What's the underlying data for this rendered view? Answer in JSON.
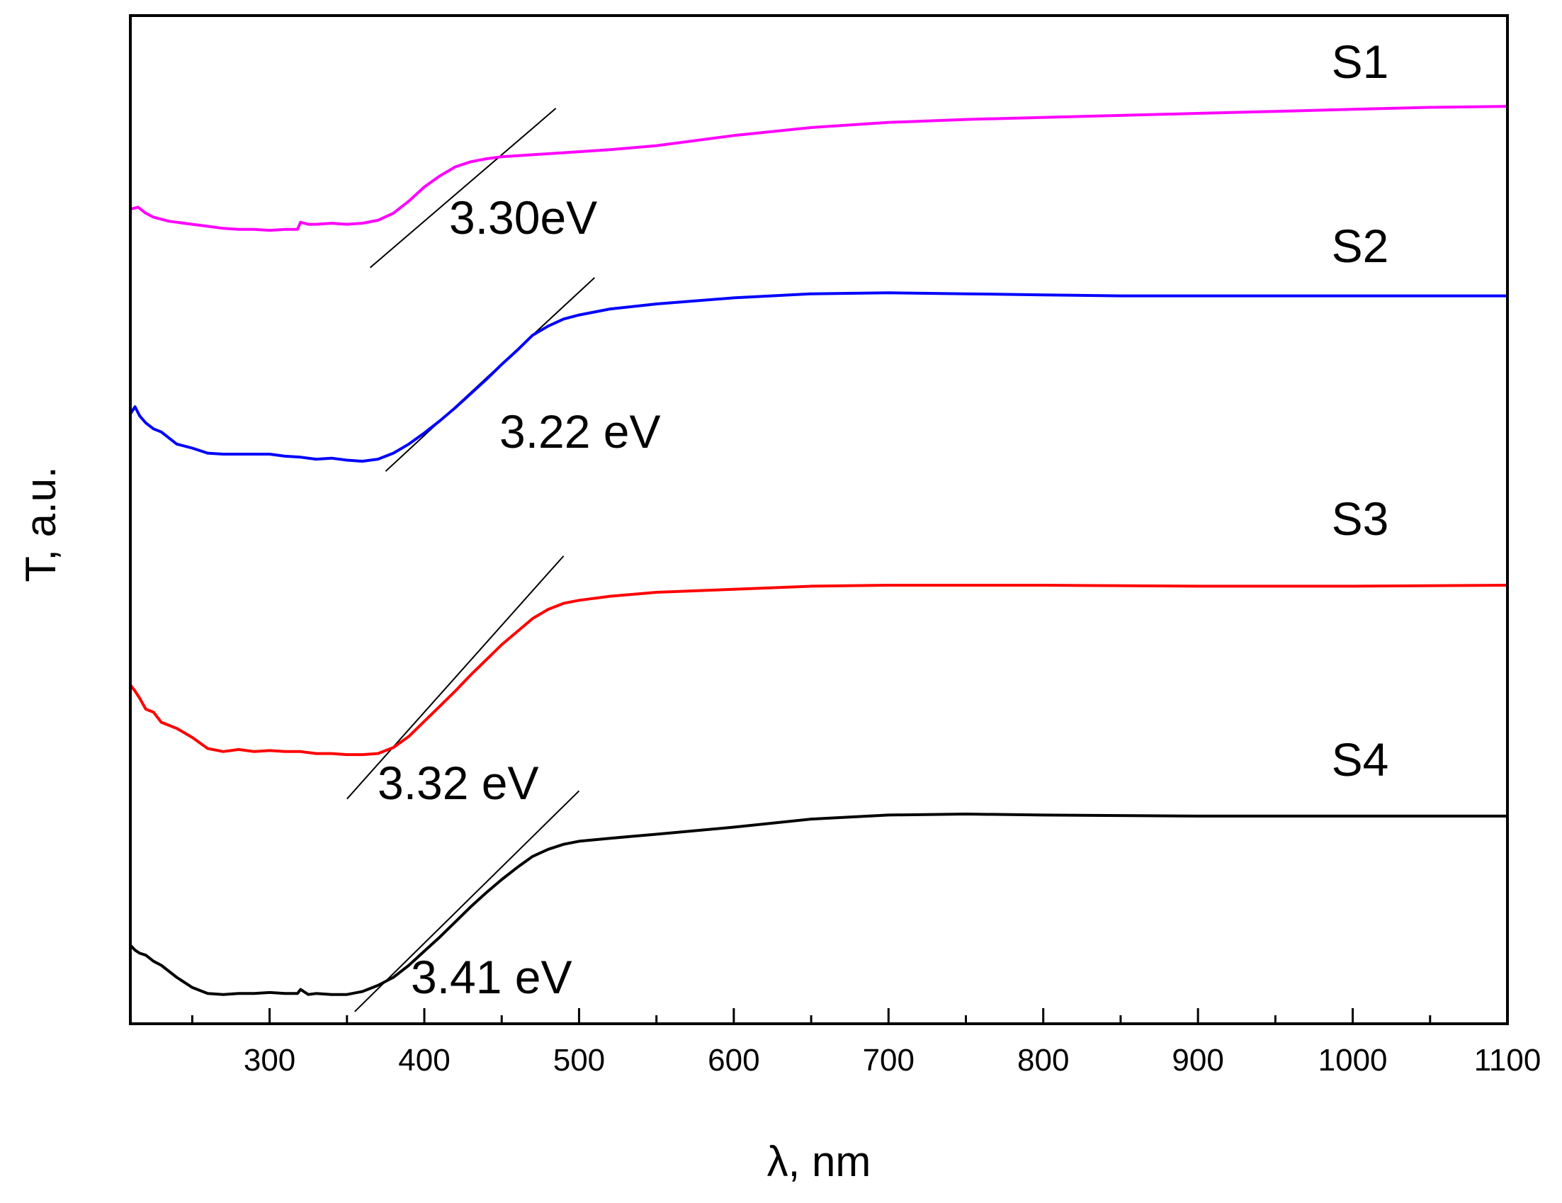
{
  "chart_data": {
    "type": "line",
    "title": "",
    "xlabel": "λ, nm",
    "ylabel": "T, a.u.",
    "xlim": [
      210,
      1100
    ],
    "ylim": [
      0,
      100
    ],
    "xticks_major": [
      300,
      400,
      500,
      600,
      700,
      800,
      900,
      1000,
      1100
    ],
    "xticks_minor": [
      250,
      350,
      450,
      550,
      650,
      750,
      850,
      950,
      1050
    ],
    "grid": false,
    "legend": "none",
    "series": [
      {
        "name": "S1",
        "color": "#ff00ff",
        "points": [
          [
            210,
            80.8
          ],
          [
            215,
            81.0
          ],
          [
            220,
            80.4
          ],
          [
            225,
            80.0
          ],
          [
            230,
            79.8
          ],
          [
            235,
            79.6
          ],
          [
            240,
            79.5
          ],
          [
            250,
            79.3
          ],
          [
            260,
            79.1
          ],
          [
            270,
            78.9
          ],
          [
            280,
            78.8
          ],
          [
            290,
            78.8
          ],
          [
            300,
            78.7
          ],
          [
            310,
            78.8
          ],
          [
            318,
            78.8
          ],
          [
            320,
            79.5
          ],
          [
            325,
            79.3
          ],
          [
            330,
            79.3
          ],
          [
            340,
            79.4
          ],
          [
            350,
            79.3
          ],
          [
            360,
            79.4
          ],
          [
            370,
            79.7
          ],
          [
            380,
            80.4
          ],
          [
            390,
            81.6
          ],
          [
            400,
            83.0
          ],
          [
            410,
            84.1
          ],
          [
            420,
            85.0
          ],
          [
            430,
            85.5
          ],
          [
            440,
            85.8
          ],
          [
            450,
            86.0
          ],
          [
            470,
            86.2
          ],
          [
            500,
            86.5
          ],
          [
            520,
            86.7
          ],
          [
            550,
            87.1
          ],
          [
            600,
            88.1
          ],
          [
            650,
            88.9
          ],
          [
            700,
            89.4
          ],
          [
            750,
            89.7
          ],
          [
            800,
            89.9
          ],
          [
            850,
            90.1
          ],
          [
            900,
            90.3
          ],
          [
            950,
            90.5
          ],
          [
            1000,
            90.7
          ],
          [
            1050,
            90.9
          ],
          [
            1100,
            91.0
          ]
        ],
        "onset": {
          "label": "3.30eV",
          "x1": 365,
          "y1": 75.0,
          "x2": 485,
          "y2": 90.8
        }
      },
      {
        "name": "S2",
        "color": "#0000ff",
        "points": [
          [
            210,
            60.5
          ],
          [
            213,
            61.2
          ],
          [
            216,
            60.3
          ],
          [
            220,
            59.6
          ],
          [
            225,
            59.0
          ],
          [
            230,
            58.7
          ],
          [
            240,
            57.5
          ],
          [
            250,
            57.1
          ],
          [
            260,
            56.6
          ],
          [
            270,
            56.5
          ],
          [
            280,
            56.5
          ],
          [
            290,
            56.5
          ],
          [
            300,
            56.5
          ],
          [
            310,
            56.3
          ],
          [
            320,
            56.2
          ],
          [
            330,
            56.0
          ],
          [
            340,
            56.1
          ],
          [
            350,
            55.9
          ],
          [
            360,
            55.8
          ],
          [
            370,
            56.0
          ],
          [
            380,
            56.6
          ],
          [
            390,
            57.5
          ],
          [
            400,
            58.6
          ],
          [
            410,
            59.8
          ],
          [
            420,
            61.1
          ],
          [
            430,
            62.5
          ],
          [
            440,
            63.9
          ],
          [
            450,
            65.4
          ],
          [
            460,
            66.8
          ],
          [
            470,
            68.3
          ],
          [
            480,
            69.2
          ],
          [
            490,
            69.9
          ],
          [
            500,
            70.3
          ],
          [
            520,
            70.9
          ],
          [
            550,
            71.4
          ],
          [
            600,
            72.0
          ],
          [
            650,
            72.4
          ],
          [
            700,
            72.5
          ],
          [
            750,
            72.4
          ],
          [
            800,
            72.3
          ],
          [
            850,
            72.2
          ],
          [
            900,
            72.2
          ],
          [
            1000,
            72.2
          ],
          [
            1100,
            72.2
          ]
        ],
        "onset": {
          "label": "3.22 eV",
          "x1": 375,
          "y1": 54.8,
          "x2": 510,
          "y2": 74.0
        }
      },
      {
        "name": "S3",
        "color": "#ff0000",
        "points": [
          [
            210,
            33.6
          ],
          [
            213,
            33.0
          ],
          [
            216,
            32.3
          ],
          [
            220,
            31.2
          ],
          [
            225,
            30.9
          ],
          [
            230,
            29.9
          ],
          [
            240,
            29.3
          ],
          [
            250,
            28.4
          ],
          [
            260,
            27.3
          ],
          [
            270,
            27.0
          ],
          [
            280,
            27.2
          ],
          [
            290,
            27.0
          ],
          [
            300,
            27.1
          ],
          [
            310,
            27.0
          ],
          [
            320,
            27.0
          ],
          [
            330,
            26.8
          ],
          [
            340,
            26.8
          ],
          [
            350,
            26.7
          ],
          [
            360,
            26.7
          ],
          [
            370,
            26.8
          ],
          [
            380,
            27.4
          ],
          [
            390,
            28.5
          ],
          [
            400,
            30.0
          ],
          [
            410,
            31.5
          ],
          [
            420,
            33.0
          ],
          [
            430,
            34.6
          ],
          [
            440,
            36.1
          ],
          [
            450,
            37.6
          ],
          [
            460,
            38.9
          ],
          [
            470,
            40.2
          ],
          [
            480,
            41.1
          ],
          [
            490,
            41.7
          ],
          [
            500,
            42.0
          ],
          [
            520,
            42.4
          ],
          [
            550,
            42.8
          ],
          [
            600,
            43.1
          ],
          [
            650,
            43.4
          ],
          [
            700,
            43.5
          ],
          [
            800,
            43.5
          ],
          [
            900,
            43.4
          ],
          [
            1000,
            43.4
          ],
          [
            1100,
            43.5
          ]
        ],
        "onset": {
          "label": "3.32 eV",
          "x1": 350,
          "y1": 22.3,
          "x2": 490,
          "y2": 46.4
        }
      },
      {
        "name": "S4",
        "color": "#000000",
        "points": [
          [
            210,
            7.8
          ],
          [
            213,
            7.3
          ],
          [
            216,
            7.0
          ],
          [
            220,
            6.8
          ],
          [
            225,
            6.2
          ],
          [
            230,
            5.8
          ],
          [
            240,
            4.6
          ],
          [
            250,
            3.6
          ],
          [
            260,
            3.0
          ],
          [
            270,
            2.9
          ],
          [
            280,
            3.0
          ],
          [
            290,
            3.0
          ],
          [
            300,
            3.1
          ],
          [
            310,
            3.0
          ],
          [
            318,
            3.0
          ],
          [
            320,
            3.4
          ],
          [
            325,
            2.9
          ],
          [
            330,
            3.0
          ],
          [
            340,
            2.9
          ],
          [
            350,
            2.9
          ],
          [
            360,
            3.2
          ],
          [
            370,
            3.8
          ],
          [
            380,
            4.6
          ],
          [
            390,
            5.8
          ],
          [
            400,
            7.2
          ],
          [
            410,
            8.6
          ],
          [
            420,
            10.1
          ],
          [
            430,
            11.6
          ],
          [
            440,
            13.0
          ],
          [
            450,
            14.3
          ],
          [
            460,
            15.5
          ],
          [
            470,
            16.6
          ],
          [
            480,
            17.3
          ],
          [
            490,
            17.8
          ],
          [
            500,
            18.1
          ],
          [
            520,
            18.4
          ],
          [
            550,
            18.8
          ],
          [
            600,
            19.5
          ],
          [
            650,
            20.3
          ],
          [
            700,
            20.7
          ],
          [
            750,
            20.8
          ],
          [
            800,
            20.7
          ],
          [
            900,
            20.6
          ],
          [
            1000,
            20.6
          ],
          [
            1100,
            20.6
          ]
        ],
        "onset": {
          "label": "3.41 eV",
          "x1": 355,
          "y1": 1.2,
          "x2": 500,
          "y2": 23.1
        }
      }
    ]
  }
}
